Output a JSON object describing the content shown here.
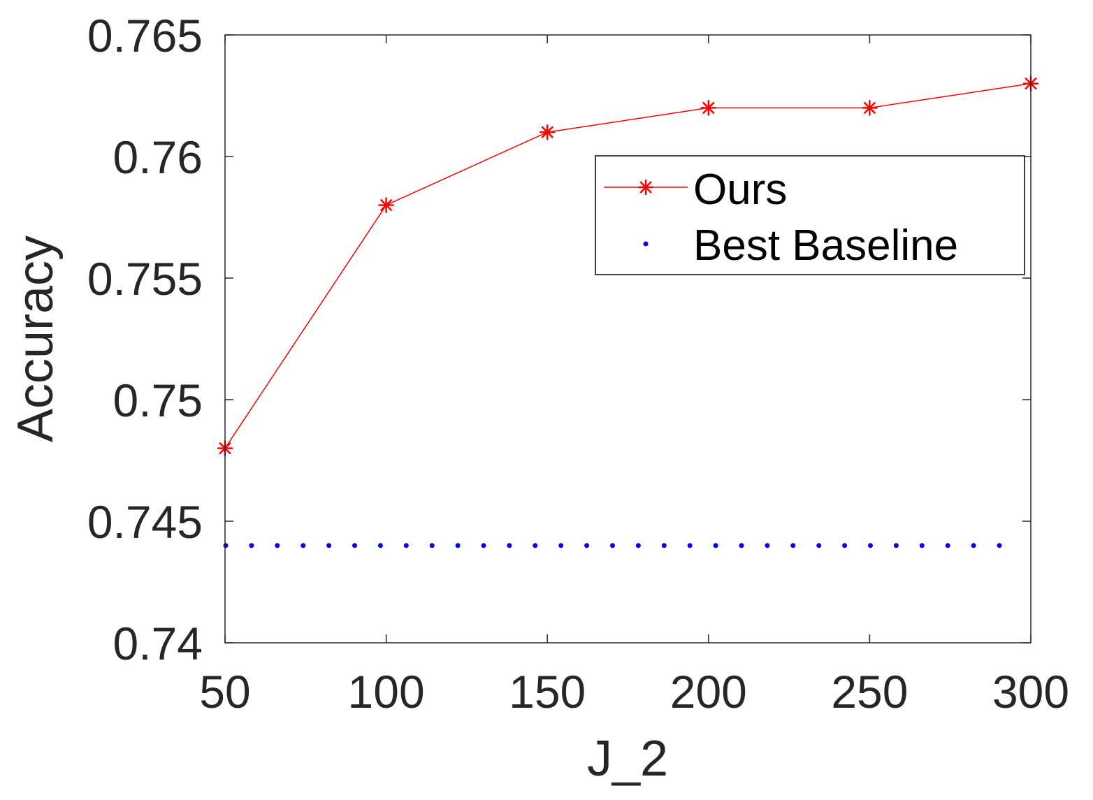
{
  "chart_data": {
    "type": "line",
    "title": "",
    "xlabel": "J_2",
    "ylabel": "Accuracy",
    "xlim": [
      50,
      300
    ],
    "ylim": [
      0.74,
      0.765
    ],
    "xticks": [
      "50",
      "100",
      "150",
      "200",
      "250",
      "300"
    ],
    "yticks": [
      "0.74",
      "0.745",
      "0.75",
      "0.755",
      "0.76",
      "0.765"
    ],
    "grid": false,
    "legend_position": "top-right",
    "series": [
      {
        "name": "Ours",
        "color": "#ff0000",
        "line_style": "solid",
        "marker": "asterisk",
        "x": [
          50,
          100,
          150,
          200,
          250,
          300
        ],
        "y": [
          0.748,
          0.758,
          0.761,
          0.762,
          0.762,
          0.763
        ]
      },
      {
        "name": "Best Baseline",
        "color": "#0000ff",
        "line_style": "dotted",
        "marker": "none",
        "x": [
          50,
          300
        ],
        "y": [
          0.744,
          0.744
        ]
      }
    ]
  }
}
